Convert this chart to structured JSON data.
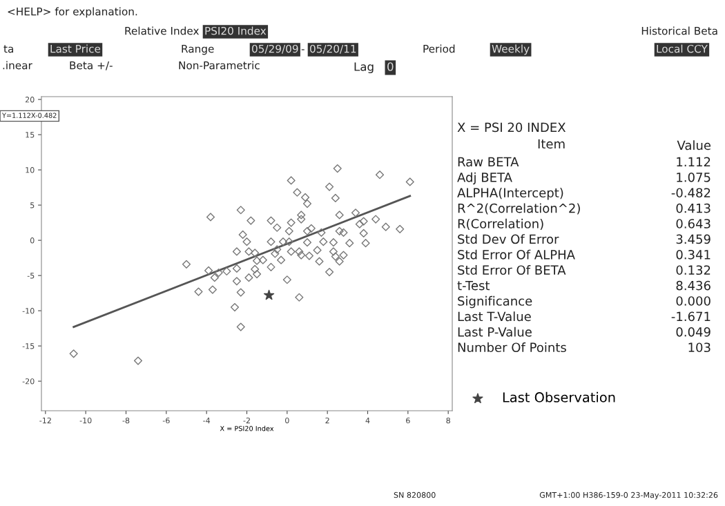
{
  "chart_data": {
    "type": "scatter",
    "xlabel": "X = PSI20 Index",
    "xlim": [
      -12.2,
      8.2
    ],
    "xticks": [
      -12,
      -10,
      -8,
      -6,
      -4,
      -2,
      0,
      2,
      4,
      6,
      8
    ],
    "ylim": [
      -24.2,
      20.4
    ],
    "yticks": [
      -20,
      -15,
      -10,
      -5,
      0,
      5,
      10,
      15,
      20
    ],
    "grid": false,
    "legend": "right",
    "marker": "diamond",
    "series": [
      {
        "color": "#777777",
        "x": [
          2.5,
          4.6,
          6.1,
          0.2,
          2.1,
          0.5,
          0.9,
          2.4,
          1.0,
          -2.3,
          -3.8,
          2.6,
          3.4,
          -1.8,
          -0.8,
          0.7,
          0.7,
          0.2,
          4.4,
          3.6,
          3.8,
          4.9,
          5.6,
          -0.5,
          1.2,
          1.0,
          0.1,
          2.6,
          2.8,
          1.7,
          3.8,
          -2.2,
          -2.0,
          -0.8,
          -0.2,
          0.1,
          1.0,
          1.8,
          2.3,
          3.1,
          3.9,
          -2.5,
          -1.9,
          -1.6,
          -0.5,
          0.2,
          0.6,
          1.5,
          2.3,
          2.8,
          -0.6,
          0.7,
          1.1,
          2.4,
          -5.0,
          -3.9,
          -3.4,
          -3.0,
          -2.5,
          -1.5,
          -1.2,
          -0.3,
          1.6,
          2.6,
          -1.6,
          -0.8,
          -3.6,
          -2.5,
          -1.9,
          -1.5,
          2.1,
          0.0,
          -4.4,
          -3.7,
          -2.3,
          0.6,
          -2.6,
          -2.3,
          -10.6,
          -7.4
        ],
        "values": [
          10.2,
          9.3,
          8.3,
          8.5,
          7.6,
          6.8,
          6.1,
          6.0,
          5.2,
          4.3,
          3.3,
          3.6,
          3.9,
          2.8,
          2.8,
          3.6,
          3.0,
          2.5,
          3.0,
          2.3,
          2.7,
          1.9,
          1.6,
          1.8,
          1.7,
          1.3,
          1.3,
          1.3,
          1.1,
          1.1,
          1.0,
          0.8,
          -0.2,
          -0.2,
          -0.2,
          -0.2,
          -0.3,
          -0.2,
          -0.3,
          -0.4,
          -0.4,
          -1.6,
          -1.6,
          -1.8,
          -1.3,
          -1.6,
          -1.6,
          -1.4,
          -1.6,
          -2.1,
          -1.9,
          -2.1,
          -2.2,
          -2.3,
          -3.4,
          -4.3,
          -4.6,
          -4.4,
          -4.0,
          -2.9,
          -2.8,
          -2.8,
          -3.0,
          -3.0,
          -4.1,
          -3.8,
          -5.3,
          -5.8,
          -5.3,
          -4.8,
          -4.5,
          -5.6,
          -7.3,
          -7.0,
          -7.4,
          -8.1,
          -9.5,
          -12.3,
          -16.1,
          -17.1
        ]
      },
      {
        "type": "line",
        "color": "#555555",
        "marker": "none",
        "line_style": "solid",
        "x": [
          -10.6,
          6.1
        ],
        "values": [
          -12.3,
          6.3
        ]
      },
      {
        "name": "Last Observation",
        "color": "#444444",
        "marker": "star",
        "x": [
          -0.9
        ],
        "values": [
          -7.8
        ]
      }
    ],
    "annotations": [
      "<HELP> for explanation.",
      "Relative Index",
      "PSI20 Index",
      "Historical Beta",
      "ta",
      "Last Price",
      "Range",
      "05/29/09",
      "-",
      "05/20/11",
      "Period",
      "Weekly",
      "Local CCY",
      ".inear",
      "Beta +/-",
      "Non-Parametric",
      "Lag",
      "0",
      "Y=1.112X-0.482",
      "X = PSI 20 INDEX",
      "Item",
      "Value",
      "Raw BETA",
      "Adj BETA",
      "ALPHA(Intercept)",
      "R^2(Correlation^2)",
      "R(Correlation)",
      "Std Dev Of Error",
      "Std Error Of ALPHA",
      "Std Error Of BETA",
      "t-Test",
      "Significance",
      "Last T-Value",
      "Last P-Value",
      "Number Of Points",
      "1.112",
      "1.075",
      "-0.482",
      "0.413",
      "0.643",
      "3.459",
      "0.341",
      "0.132",
      "8.436",
      "0.000",
      "-1.671",
      "0.049",
      "103",
      "SN 820800",
      "GMT+1:00 H386-159-0 23-May-2011 10:32:26"
    ]
  }
}
